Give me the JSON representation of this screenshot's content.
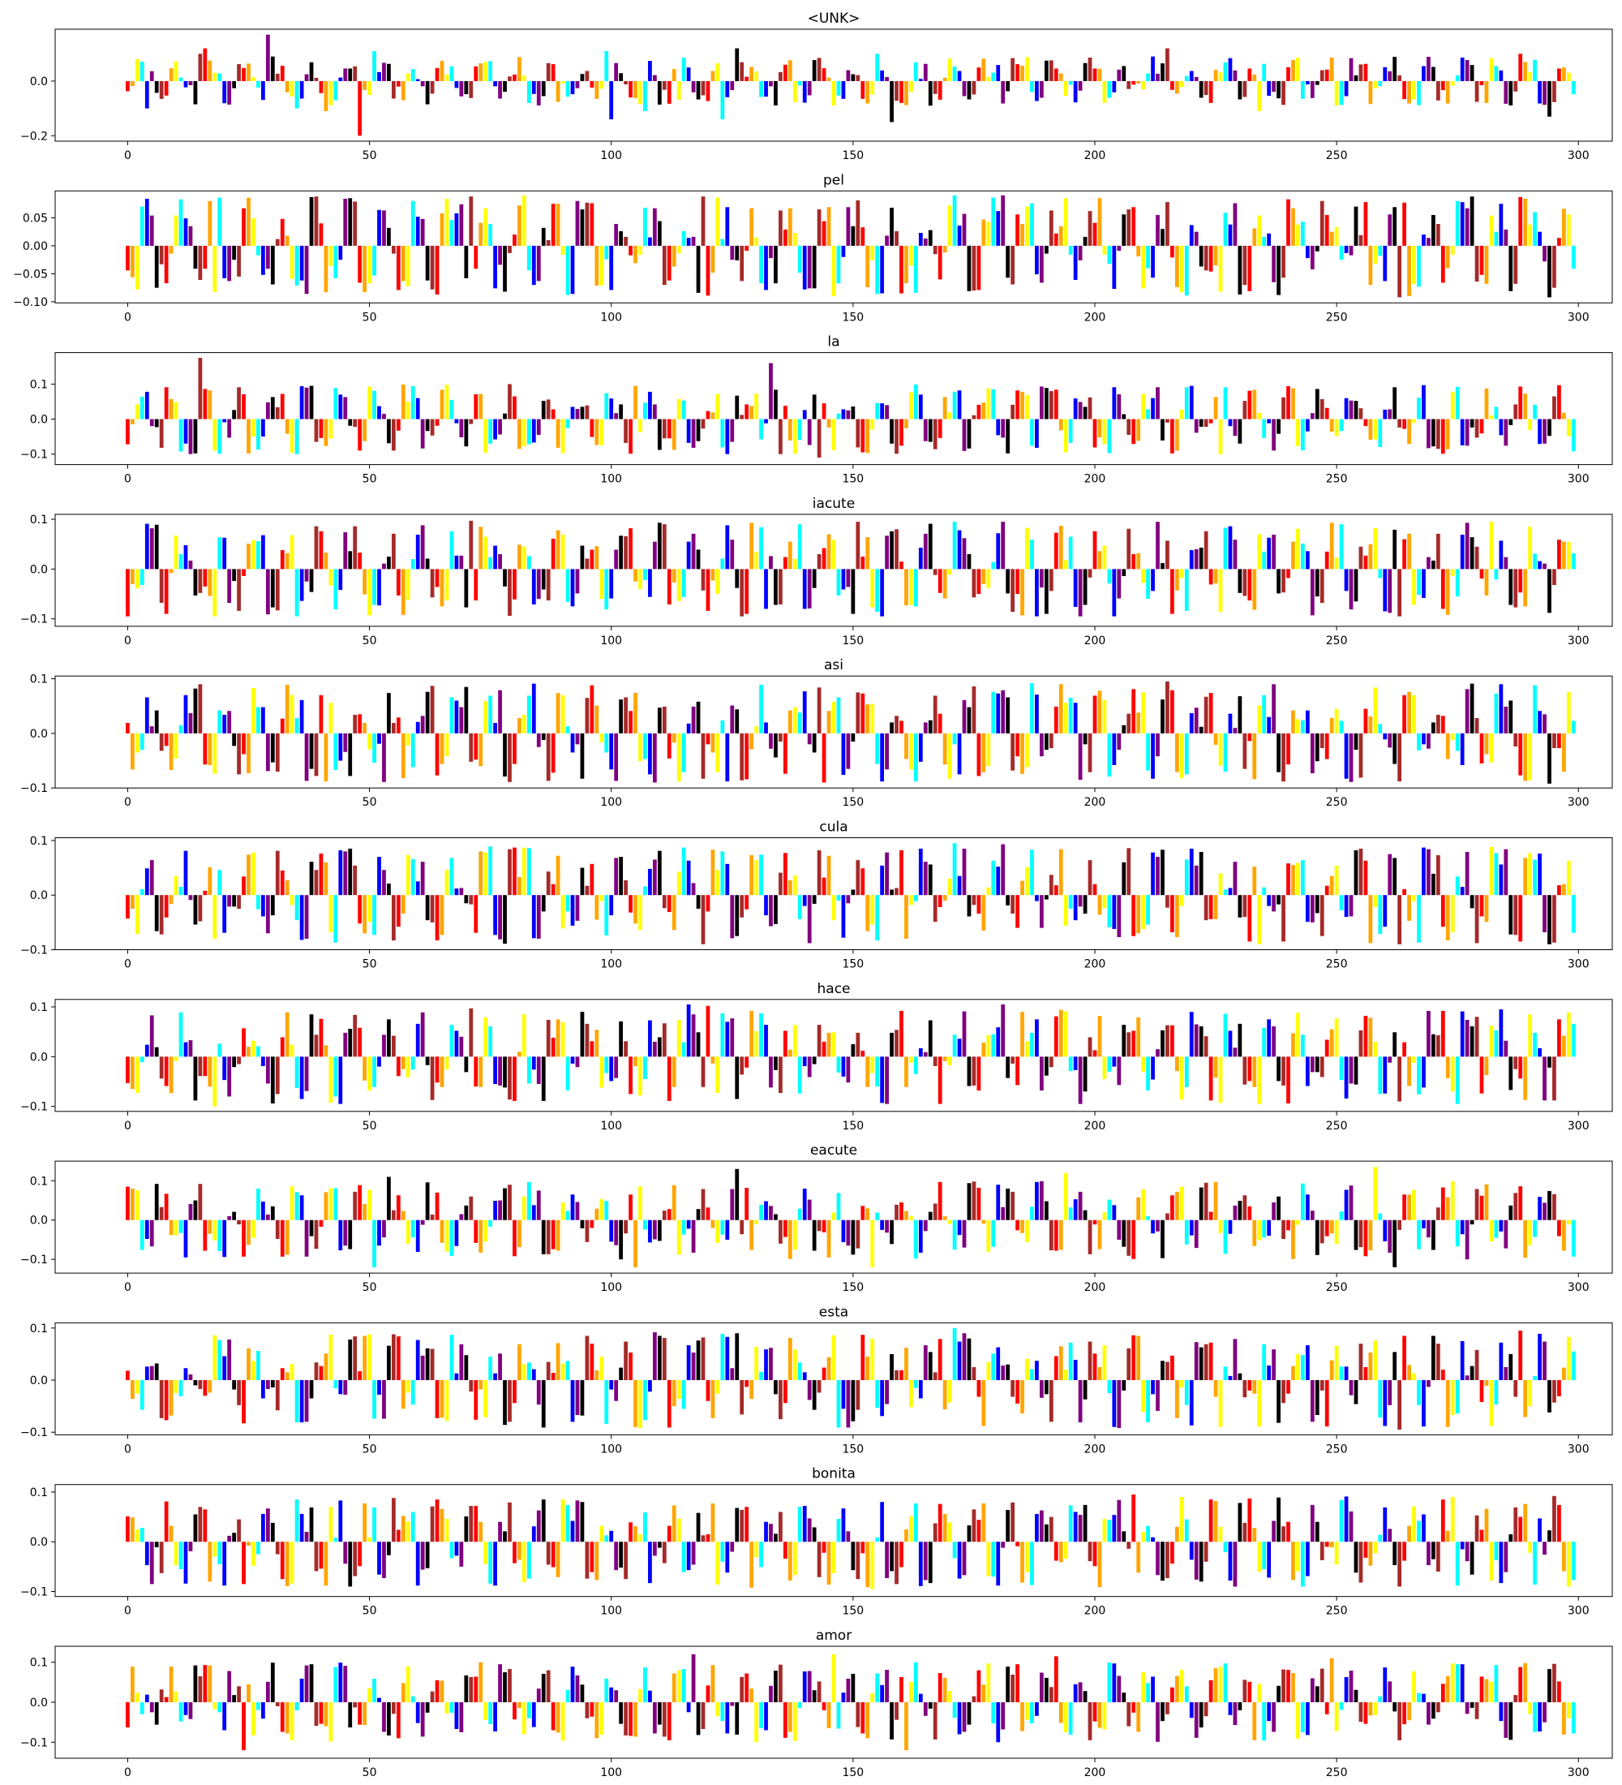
{
  "figure": {
    "n_bars": 300,
    "bar_colors": [
      "#ff0000",
      "#ffa500",
      "#ffff00",
      "#00ffff",
      "#0000ff",
      "#800080",
      "#000000",
      "#a52a2a"
    ],
    "x_ticks": [
      0,
      50,
      100,
      150,
      200,
      250,
      300
    ],
    "x_tick_labels": [
      "0",
      "50",
      "100",
      "150",
      "200",
      "250",
      "300"
    ]
  },
  "chart_data": [
    {
      "type": "bar",
      "title": "<UNK>",
      "xlim": [
        -15,
        307
      ],
      "ylim": [
        -0.22,
        0.19
      ],
      "yticks": [
        -0.2,
        0.0
      ],
      "ytick_labels": [
        "−0.2",
        "0.0"
      ],
      "seed": 11,
      "amp": 0.09,
      "highlights": [
        [
          4,
          -0.1
        ],
        [
          15,
          0.1
        ],
        [
          16,
          0.12
        ],
        [
          29,
          0.17
        ],
        [
          35,
          -0.1
        ],
        [
          41,
          -0.11
        ],
        [
          48,
          -0.2
        ],
        [
          51,
          0.11
        ],
        [
          99,
          0.11
        ],
        [
          100,
          -0.14
        ],
        [
          107,
          -0.11
        ],
        [
          123,
          -0.14
        ],
        [
          126,
          0.12
        ],
        [
          155,
          0.1
        ],
        [
          158,
          -0.15
        ],
        [
          215,
          0.12
        ],
        [
          234,
          -0.11
        ],
        [
          288,
          0.1
        ],
        [
          294,
          -0.13
        ]
      ]
    },
    {
      "type": "bar",
      "title": "pel",
      "xlim": [
        -15,
        307
      ],
      "ylim": [
        -0.102,
        0.098
      ],
      "yticks": [
        -0.1,
        -0.05,
        0.0,
        0.05
      ],
      "ytick_labels": [
        "−0.10",
        "−0.05",
        "0.00",
        "0.05"
      ],
      "seed": 23,
      "amp": 0.09,
      "highlights": [
        [
          18,
          -0.083
        ],
        [
          71,
          0.088
        ],
        [
          119,
          0.088
        ],
        [
          156,
          -0.085
        ],
        [
          171,
          0.09
        ],
        [
          181,
          0.09
        ],
        [
          238,
          -0.088
        ],
        [
          263,
          -0.092
        ],
        [
          288,
          0.087
        ],
        [
          294,
          -0.092
        ]
      ]
    },
    {
      "type": "bar",
      "title": "la",
      "xlim": [
        -15,
        307
      ],
      "ylim": [
        -0.13,
        0.19
      ],
      "yticks": [
        -0.1,
        0.0,
        0.1
      ],
      "ytick_labels": [
        "−0.1",
        "0.0",
        "0.1"
      ],
      "seed": 37,
      "amp": 0.1,
      "highlights": [
        [
          15,
          0.175
        ],
        [
          18,
          -0.09
        ],
        [
          35,
          -0.1
        ],
        [
          124,
          -0.1
        ],
        [
          133,
          0.16
        ],
        [
          135,
          -0.1
        ],
        [
          143,
          -0.11
        ],
        [
          226,
          -0.1
        ],
        [
          276,
          -0.075
        ]
      ]
    },
    {
      "type": "bar",
      "title": "iacute",
      "xlim": [
        -15,
        307
      ],
      "ylim": [
        -0.115,
        0.11
      ],
      "yticks": [
        -0.1,
        0.0,
        0.1
      ],
      "ytick_labels": [
        "−0.1",
        "0.0",
        "0.1"
      ],
      "seed": 41,
      "amp": 0.095,
      "highlights": [
        [
          18,
          -0.095
        ],
        [
          71,
          0.097
        ],
        [
          156,
          -0.095
        ],
        [
          171,
          0.095
        ],
        [
          181,
          0.095
        ],
        [
          204,
          -0.095
        ],
        [
          263,
          -0.095
        ],
        [
          282,
          0.095
        ]
      ]
    },
    {
      "type": "bar",
      "title": "asi",
      "xlim": [
        -15,
        307
      ],
      "ylim": [
        -0.1,
        0.105
      ],
      "yticks": [
        -0.1,
        0.0,
        0.1
      ],
      "ytick_labels": [
        "−0.1",
        "0.0",
        "0.1"
      ],
      "seed": 53,
      "amp": 0.092,
      "highlights": [
        [
          15,
          0.09
        ],
        [
          41,
          -0.088
        ],
        [
          109,
          -0.09
        ],
        [
          124,
          -0.088
        ],
        [
          144,
          -0.09
        ],
        [
          215,
          0.095
        ],
        [
          263,
          -0.088
        ],
        [
          294,
          -0.092
        ]
      ]
    },
    {
      "type": "bar",
      "title": "cula",
      "xlim": [
        -15,
        307
      ],
      "ylim": [
        -0.1,
        0.105
      ],
      "yticks": [
        -0.1,
        0.0,
        0.1
      ],
      "ytick_labels": [
        "−0.1",
        "0.0",
        "0.1"
      ],
      "seed": 67,
      "amp": 0.09,
      "highlights": [
        [
          18,
          -0.08
        ],
        [
          171,
          0.095
        ],
        [
          181,
          0.093
        ],
        [
          234,
          -0.09
        ],
        [
          263,
          -0.09
        ],
        [
          294,
          -0.09
        ]
      ]
    },
    {
      "type": "bar",
      "title": "hace",
      "xlim": [
        -15,
        307
      ],
      "ylim": [
        -0.11,
        0.115
      ],
      "yticks": [
        -0.1,
        0.0,
        0.1
      ],
      "ytick_labels": [
        "−0.1",
        "0.0",
        "0.1"
      ],
      "seed": 79,
      "amp": 0.095,
      "highlights": [
        [
          18,
          -0.1
        ],
        [
          71,
          0.097
        ],
        [
          116,
          0.105
        ],
        [
          120,
          0.102
        ],
        [
          157,
          -0.095
        ],
        [
          181,
          0.105
        ],
        [
          234,
          -0.095
        ],
        [
          263,
          -0.09
        ]
      ]
    },
    {
      "type": "bar",
      "title": "eacute",
      "xlim": [
        -15,
        307
      ],
      "ylim": [
        -0.135,
        0.15
      ],
      "yticks": [
        -0.1,
        0.0,
        0.1
      ],
      "ytick_labels": [
        "−0.1",
        "0.0",
        "0.1"
      ],
      "seed": 83,
      "amp": 0.1,
      "highlights": [
        [
          51,
          -0.12
        ],
        [
          54,
          0.11
        ],
        [
          105,
          -0.12
        ],
        [
          126,
          0.13
        ],
        [
          154,
          -0.12
        ],
        [
          194,
          0.12
        ],
        [
          258,
          0.135
        ],
        [
          262,
          -0.12
        ]
      ]
    },
    {
      "type": "bar",
      "title": "esta",
      "xlim": [
        -15,
        307
      ],
      "ylim": [
        -0.105,
        0.11
      ],
      "yticks": [
        -0.1,
        0.0,
        0.1
      ],
      "ytick_labels": [
        "−0.1",
        "0.0",
        "0.1"
      ],
      "seed": 97,
      "amp": 0.092,
      "highlights": [
        [
          105,
          -0.09
        ],
        [
          171,
          0.1
        ],
        [
          204,
          -0.09
        ],
        [
          263,
          -0.095
        ],
        [
          288,
          0.095
        ]
      ]
    },
    {
      "type": "bar",
      "title": "bonita",
      "xlim": [
        -15,
        307
      ],
      "ylim": [
        -0.11,
        0.115
      ],
      "yticks": [
        -0.1,
        0.0,
        0.1
      ],
      "ytick_labels": [
        "−0.1",
        "0.0",
        "0.1"
      ],
      "seed": 101,
      "amp": 0.092,
      "highlights": [
        [
          24,
          -0.085
        ],
        [
          55,
          0.088
        ],
        [
          154,
          -0.095
        ],
        [
          208,
          0.095
        ],
        [
          263,
          -0.09
        ],
        [
          275,
          -0.088
        ]
      ]
    },
    {
      "type": "bar",
      "title": "amor",
      "xlim": [
        -15,
        307
      ],
      "ylim": [
        -0.14,
        0.14
      ],
      "yticks": [
        -0.1,
        0.0,
        0.1
      ],
      "ytick_labels": [
        "−0.1",
        "0.0",
        "0.1"
      ],
      "seed": 113,
      "amp": 0.1,
      "highlights": [
        [
          24,
          -0.12
        ],
        [
          117,
          0.12
        ],
        [
          146,
          0.12
        ],
        [
          161,
          -0.12
        ],
        [
          192,
          0.115
        ],
        [
          233,
          -0.095
        ],
        [
          249,
          0.11
        ],
        [
          263,
          -0.095
        ]
      ]
    }
  ]
}
